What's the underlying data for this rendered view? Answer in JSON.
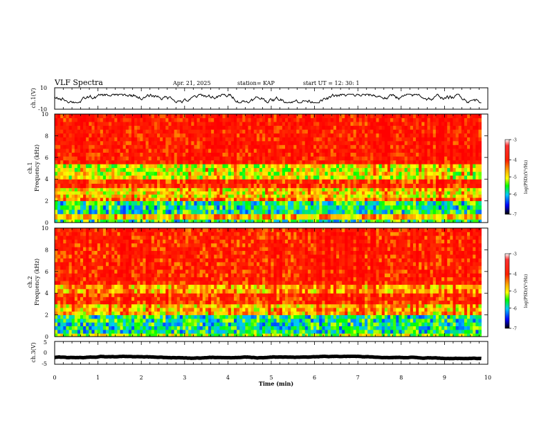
{
  "header": {
    "title": "VLF Spectra",
    "date": "Apr. 21, 2025",
    "station": "station= KAP",
    "start": "start  UT =   12: 30: 1"
  },
  "colorbar": {
    "label": "log(PSD)(V²/Hz)",
    "ticks": [
      "-3",
      "-4",
      "-5",
      "-6",
      "-7"
    ],
    "colors": [
      "#ff0000",
      "#ff8000",
      "#ffff00",
      "#00ff00",
      "#00c8ff",
      "#0000ff",
      "#000000"
    ]
  },
  "chart_data": [
    {
      "type": "line",
      "panel": "ch.1 waveform",
      "ylabel": "ch.1(V)",
      "ylim": [
        -10,
        10
      ],
      "yticks": [
        "10",
        "-10"
      ],
      "xlim": [
        0,
        10
      ],
      "approx_mean": 0,
      "approx_range": [
        -4,
        4
      ]
    },
    {
      "type": "heatmap",
      "panel": "ch.1 spectrogram",
      "ylabel_line1": "ch.1",
      "ylabel_line2": "Frequency (kHz)",
      "ylim": [
        0,
        10
      ],
      "yticks": [
        "0",
        "2",
        "4",
        "6",
        "8",
        "10"
      ],
      "xlim": [
        0,
        10
      ],
      "data_end_min": 9.85,
      "bands": [
        {
          "f_from": 0,
          "f_to": 0.3,
          "level": -5.5
        },
        {
          "f_from": 0.3,
          "f_to": 0.8,
          "level": -4.5
        },
        {
          "f_from": 0.8,
          "f_to": 2.0,
          "level": -5.6
        },
        {
          "f_from": 2.0,
          "f_to": 2.3,
          "level": -4.2
        },
        {
          "f_from": 2.3,
          "f_to": 3.2,
          "level": -4.7
        },
        {
          "f_from": 3.2,
          "f_to": 4.0,
          "level": -3.8
        },
        {
          "f_from": 4.0,
          "f_to": 5.4,
          "level": -4.9
        },
        {
          "f_from": 5.4,
          "f_to": 10.0,
          "level": -3.6
        }
      ]
    },
    {
      "type": "heatmap",
      "panel": "ch.2 spectrogram",
      "ylabel_line1": "ch.2",
      "ylabel_line2": "Frequency (kHz)",
      "ylim": [
        0,
        10
      ],
      "yticks": [
        "0",
        "2",
        "4",
        "6",
        "8",
        "10"
      ],
      "xlim": [
        0,
        10
      ],
      "data_end_min": 9.85,
      "bands": [
        {
          "f_from": 0,
          "f_to": 0.3,
          "level": -5.0
        },
        {
          "f_from": 0.3,
          "f_to": 2.0,
          "level": -5.6
        },
        {
          "f_from": 2.0,
          "f_to": 3.0,
          "level": -4.6
        },
        {
          "f_from": 3.0,
          "f_to": 4.0,
          "level": -3.8
        },
        {
          "f_from": 4.0,
          "f_to": 4.8,
          "level": -4.5
        },
        {
          "f_from": 4.8,
          "f_to": 10.0,
          "level": -3.7
        }
      ]
    },
    {
      "type": "line",
      "panel": "ch.3 waveform",
      "ylabel": "ch.3(V)",
      "ylim": [
        -5,
        5
      ],
      "yticks": [
        "5",
        "0",
        "-5"
      ],
      "xlim": [
        0,
        10
      ],
      "approx_mean": -2,
      "approx_range": [
        -2.5,
        -1.5
      ]
    }
  ],
  "x_axis": {
    "label": "Time (min)",
    "ticks": [
      "0",
      "1",
      "2",
      "3",
      "4",
      "5",
      "6",
      "7",
      "8",
      "9",
      "10"
    ]
  }
}
